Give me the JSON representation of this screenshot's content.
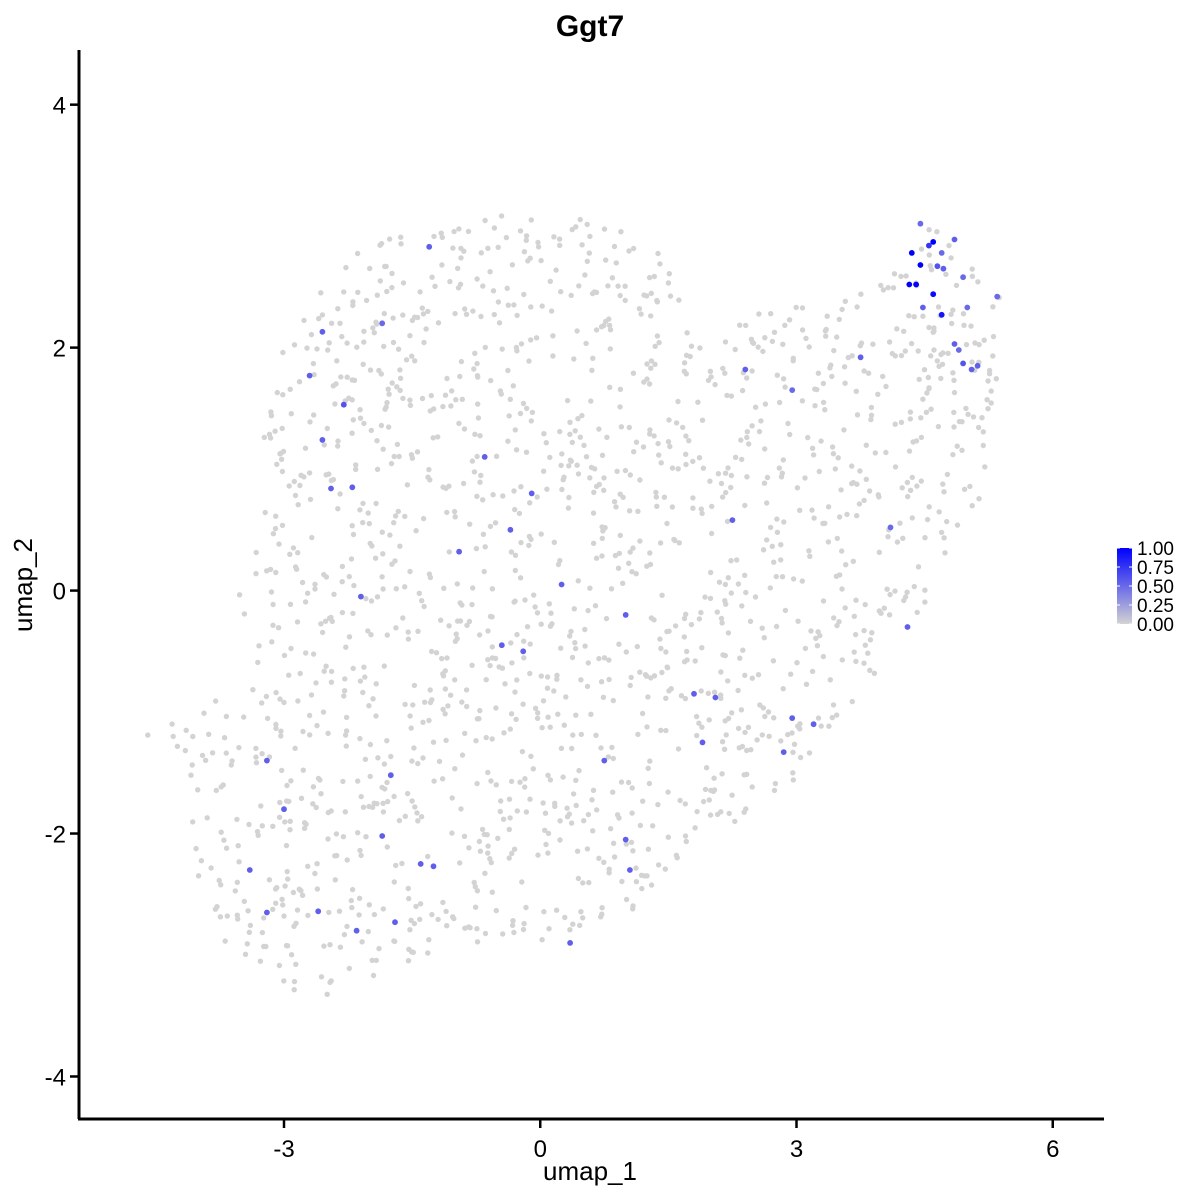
{
  "chart_data": {
    "type": "scatter",
    "title": "Ggt7",
    "xlabel": "umap_1",
    "ylabel": "umap_2",
    "xlim": [
      -5.4,
      6.6
    ],
    "ylim": [
      -4.35,
      4.45
    ],
    "xticks": [
      {
        "value": -3,
        "label": "-3"
      },
      {
        "value": 0,
        "label": "0"
      },
      {
        "value": 3,
        "label": "3"
      },
      {
        "value": 6,
        "label": "6"
      }
    ],
    "yticks": [
      {
        "value": -4,
        "label": "-4"
      },
      {
        "value": -2,
        "label": "-2"
      },
      {
        "value": 0,
        "label": "0"
      },
      {
        "value": 2,
        "label": "2"
      },
      {
        "value": 4,
        "label": "4"
      }
    ],
    "grid": false,
    "colors": {
      "low": "#d3d3d3",
      "high": "#0000ff"
    },
    "legend": {
      "position": "right",
      "ticks": [
        {
          "value": 1.0,
          "label": "1.00"
        },
        {
          "value": 0.75,
          "label": "0.75"
        },
        {
          "value": 0.5,
          "label": "0.50"
        },
        {
          "value": 0.25,
          "label": "0.25"
        },
        {
          "value": 0.0,
          "label": "0.00"
        }
      ]
    },
    "background_points": {
      "approx_count": 1700,
      "expression": 0,
      "region_polygon": [
        [
          -4.7,
          -1.2
        ],
        [
          -4.1,
          -1.45
        ],
        [
          -4.15,
          -2.1
        ],
        [
          -3.75,
          -2.85
        ],
        [
          -3.3,
          -3.2
        ],
        [
          -2.6,
          -3.4
        ],
        [
          -2.1,
          -3.2
        ],
        [
          -1.3,
          -3.05
        ],
        [
          -0.5,
          -3.0
        ],
        [
          0.3,
          -2.95
        ],
        [
          0.95,
          -2.75
        ],
        [
          1.45,
          -2.35
        ],
        [
          2.3,
          -1.9
        ],
        [
          3.0,
          -1.55
        ],
        [
          3.6,
          -1.05
        ],
        [
          4.0,
          -0.6
        ],
        [
          4.6,
          -0.1
        ],
        [
          5.15,
          0.75
        ],
        [
          5.35,
          1.6
        ],
        [
          5.4,
          2.4
        ],
        [
          4.9,
          2.85
        ],
        [
          4.5,
          3.05
        ],
        [
          4.1,
          2.55
        ],
        [
          3.4,
          2.45
        ],
        [
          2.6,
          2.3
        ],
        [
          1.9,
          2.1
        ],
        [
          1.35,
          2.85
        ],
        [
          0.6,
          3.05
        ],
        [
          -0.2,
          3.15
        ],
        [
          -1.2,
          3.0
        ],
        [
          -2.1,
          2.85
        ],
        [
          -2.8,
          2.35
        ],
        [
          -3.1,
          1.9
        ],
        [
          -3.25,
          1.2
        ],
        [
          -3.35,
          0.6
        ],
        [
          -3.6,
          -0.2
        ],
        [
          -3.7,
          -0.8
        ],
        [
          -4.1,
          -1.0
        ]
      ]
    },
    "expressing_points": [
      {
        "x": 4.35,
        "y": 2.78,
        "expression": 1.0
      },
      {
        "x": 4.6,
        "y": 2.87,
        "expression": 1.0
      },
      {
        "x": 4.45,
        "y": 2.68,
        "expression": 1.0
      },
      {
        "x": 4.32,
        "y": 2.52,
        "expression": 1.0
      },
      {
        "x": 4.4,
        "y": 2.52,
        "expression": 1.0
      },
      {
        "x": 4.6,
        "y": 2.44,
        "expression": 0.95
      },
      {
        "x": 4.7,
        "y": 2.27,
        "expression": 0.9
      },
      {
        "x": 4.55,
        "y": 2.84,
        "expression": 0.75
      },
      {
        "x": 4.65,
        "y": 2.67,
        "expression": 0.6
      },
      {
        "x": 4.72,
        "y": 2.65,
        "expression": 0.55
      },
      {
        "x": 4.85,
        "y": 2.89,
        "expression": 0.55
      },
      {
        "x": 4.45,
        "y": 3.02,
        "expression": 0.5
      },
      {
        "x": 4.7,
        "y": 2.78,
        "expression": 0.5
      },
      {
        "x": 4.95,
        "y": 2.58,
        "expression": 0.5
      },
      {
        "x": 4.48,
        "y": 2.33,
        "expression": 0.55
      },
      {
        "x": 5.0,
        "y": 2.33,
        "expression": 0.5
      },
      {
        "x": 4.85,
        "y": 2.03,
        "expression": 0.55
      },
      {
        "x": 4.9,
        "y": 1.98,
        "expression": 0.5
      },
      {
        "x": 4.95,
        "y": 1.87,
        "expression": 0.6
      },
      {
        "x": 5.05,
        "y": 1.82,
        "expression": 0.55
      },
      {
        "x": 5.12,
        "y": 1.85,
        "expression": 0.55
      },
      {
        "x": 5.35,
        "y": 2.42,
        "expression": 0.5
      },
      {
        "x": 3.75,
        "y": 1.92,
        "expression": 0.55
      },
      {
        "x": 2.4,
        "y": 1.82,
        "expression": 0.55
      },
      {
        "x": 2.95,
        "y": 1.65,
        "expression": 0.5
      },
      {
        "x": 2.25,
        "y": 0.58,
        "expression": 0.55
      },
      {
        "x": 4.1,
        "y": 0.52,
        "expression": 0.5
      },
      {
        "x": 4.3,
        "y": -0.3,
        "expression": 0.55
      },
      {
        "x": -1.3,
        "y": 2.83,
        "expression": 0.55
      },
      {
        "x": -2.55,
        "y": 2.13,
        "expression": 0.55
      },
      {
        "x": -1.85,
        "y": 2.2,
        "expression": 0.5
      },
      {
        "x": -2.7,
        "y": 1.77,
        "expression": 0.55
      },
      {
        "x": -2.3,
        "y": 1.53,
        "expression": 0.6
      },
      {
        "x": -2.55,
        "y": 1.24,
        "expression": 0.55
      },
      {
        "x": -0.65,
        "y": 1.1,
        "expression": 0.55
      },
      {
        "x": -0.1,
        "y": 0.8,
        "expression": 0.55
      },
      {
        "x": -2.45,
        "y": 0.84,
        "expression": 0.55
      },
      {
        "x": -2.2,
        "y": 0.85,
        "expression": 0.55
      },
      {
        "x": -0.35,
        "y": 0.5,
        "expression": 0.55
      },
      {
        "x": -0.95,
        "y": 0.32,
        "expression": 0.55
      },
      {
        "x": 0.25,
        "y": 0.05,
        "expression": 0.55
      },
      {
        "x": -2.1,
        "y": -0.05,
        "expression": 0.55
      },
      {
        "x": 1.0,
        "y": -0.2,
        "expression": 0.55
      },
      {
        "x": -0.45,
        "y": -0.45,
        "expression": 0.55
      },
      {
        "x": -0.2,
        "y": -0.5,
        "expression": 0.55
      },
      {
        "x": 1.8,
        "y": -0.85,
        "expression": 0.55
      },
      {
        "x": 2.05,
        "y": -0.88,
        "expression": 0.55
      },
      {
        "x": 2.95,
        "y": -1.05,
        "expression": 0.55
      },
      {
        "x": 3.2,
        "y": -1.1,
        "expression": 0.55
      },
      {
        "x": 1.9,
        "y": -1.25,
        "expression": 0.55
      },
      {
        "x": 2.85,
        "y": -1.33,
        "expression": 0.55
      },
      {
        "x": -3.2,
        "y": -1.4,
        "expression": 0.55
      },
      {
        "x": 0.75,
        "y": -1.4,
        "expression": 0.55
      },
      {
        "x": -1.75,
        "y": -1.52,
        "expression": 0.55
      },
      {
        "x": -3.0,
        "y": -1.8,
        "expression": 0.55
      },
      {
        "x": -1.85,
        "y": -2.02,
        "expression": 0.55
      },
      {
        "x": 1.0,
        "y": -2.05,
        "expression": 0.55
      },
      {
        "x": -1.4,
        "y": -2.25,
        "expression": 0.55
      },
      {
        "x": -1.25,
        "y": -2.27,
        "expression": 0.55
      },
      {
        "x": 1.05,
        "y": -2.3,
        "expression": 0.55
      },
      {
        "x": -3.4,
        "y": -2.3,
        "expression": 0.55
      },
      {
        "x": -3.2,
        "y": -2.65,
        "expression": 0.55
      },
      {
        "x": -2.6,
        "y": -2.64,
        "expression": 0.55
      },
      {
        "x": -1.7,
        "y": -2.73,
        "expression": 0.55
      },
      {
        "x": -2.15,
        "y": -2.8,
        "expression": 0.55
      },
      {
        "x": 0.35,
        "y": -2.9,
        "expression": 0.55
      }
    ]
  }
}
